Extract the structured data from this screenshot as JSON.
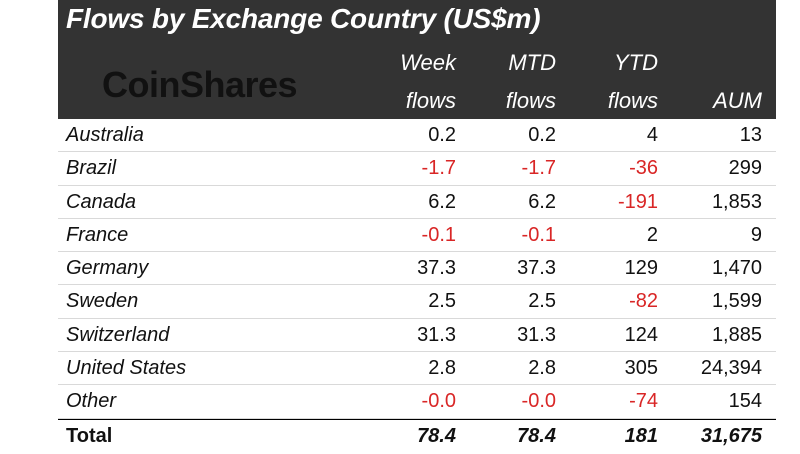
{
  "title": "Flows by Exchange Country (US$m)",
  "logo_text": "CoinShares",
  "columns": {
    "week": [
      "Week",
      "flows"
    ],
    "mtd": [
      "MTD",
      "flows"
    ],
    "ytd": [
      "YTD",
      "flows"
    ],
    "aum": "AUM"
  },
  "rows": [
    {
      "country": "Australia",
      "week": "0.2",
      "mtd": "0.2",
      "ytd": "4",
      "aum": "13"
    },
    {
      "country": "Brazil",
      "week": "-1.7",
      "mtd": "-1.7",
      "ytd": "-36",
      "aum": "299"
    },
    {
      "country": "Canada",
      "week": "6.2",
      "mtd": "6.2",
      "ytd": "-191",
      "aum": "1,853"
    },
    {
      "country": "France",
      "week": "-0.1",
      "mtd": "-0.1",
      "ytd": "2",
      "aum": "9"
    },
    {
      "country": "Germany",
      "week": "37.3",
      "mtd": "37.3",
      "ytd": "129",
      "aum": "1,470"
    },
    {
      "country": "Sweden",
      "week": "2.5",
      "mtd": "2.5",
      "ytd": "-82",
      "aum": "1,599"
    },
    {
      "country": "Switzerland",
      "week": "31.3",
      "mtd": "31.3",
      "ytd": "124",
      "aum": "1,885"
    },
    {
      "country": "United States",
      "week": "2.8",
      "mtd": "2.8",
      "ytd": "305",
      "aum": "24,394"
    },
    {
      "country": "Other",
      "week": "-0.0",
      "mtd": "-0.0",
      "ytd": "-74",
      "aum": "154"
    }
  ],
  "total": {
    "country": "Total",
    "week": "78.4",
    "mtd": "78.4",
    "ytd": "181",
    "aum": "31,675"
  },
  "colors": {
    "header_bg": "#333333",
    "negative": "#d92626"
  }
}
